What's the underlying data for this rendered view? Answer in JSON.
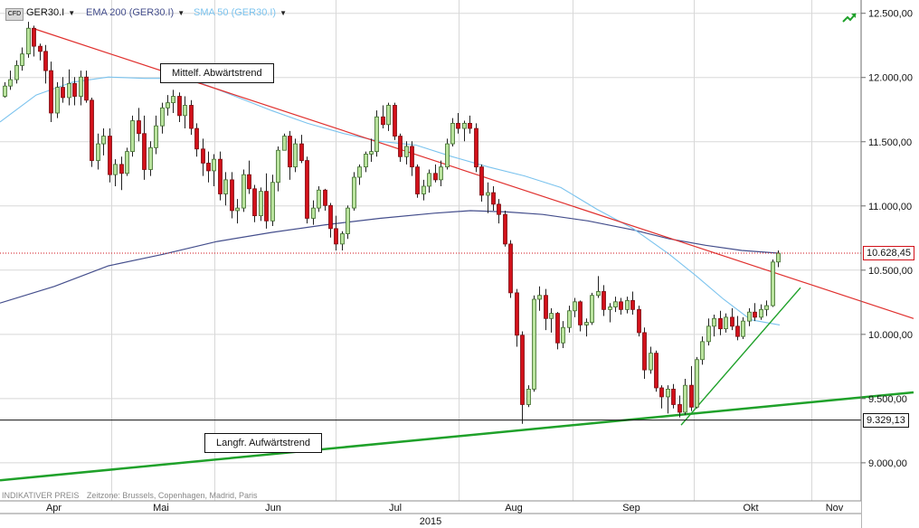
{
  "toolbar": {
    "symbol": "GER30.I",
    "ind1": "EMA 200 (GER30.I)",
    "ind2": "SMA 50 (GER30.I)",
    "ind1_color": "#444e8c",
    "ind2_color": "#7bc3ee"
  },
  "footer": {
    "price_mode": "INDIKATIVER PREIS",
    "timezone": "Zeitzone: Brussels, Copenhagen, Madrid, Paris"
  },
  "annotations": {
    "down_trend": "Mittelf. Abwärtstrend",
    "up_trend": "Langfr. Aufwärtstrend"
  },
  "tags": {
    "last_price": "10.628,45",
    "support": "9.329,13"
  },
  "chart_data": {
    "type": "candlestick",
    "ylim": [
      8700,
      12600
    ],
    "y_ticks": [
      {
        "v": 9000,
        "label": "9.000,00"
      },
      {
        "v": 9500,
        "label": "9.500,00"
      },
      {
        "v": 10000,
        "label": "10.000,00"
      },
      {
        "v": 10500,
        "label": "10.500,00"
      },
      {
        "v": 11000,
        "label": "11.000,00"
      },
      {
        "v": 11500,
        "label": "11.500,00"
      },
      {
        "v": 12000,
        "label": "12.000,00"
      },
      {
        "v": 12500,
        "label": "12.500,00"
      }
    ],
    "x_labels": [
      "Apr",
      "Mai",
      "Jun",
      "Jul",
      "Aug",
      "Sep",
      "Okt",
      "Nov"
    ],
    "x_year": "2015",
    "last_price": 10628.45,
    "support_level": 9329.13,
    "colors": {
      "up": "#b9e39d",
      "down": "#d2111a",
      "ema": "#444e8c",
      "sma": "#7bc3ee",
      "trend_down": "#e0302e",
      "trend_up": "#1fa12a"
    },
    "candles": [
      [
        11850,
        11960,
        11840,
        11930
      ],
      [
        11930,
        12050,
        11900,
        11980
      ],
      [
        11980,
        12130,
        11950,
        12090
      ],
      [
        12090,
        12230,
        12050,
        12180
      ],
      [
        12180,
        12430,
        12150,
        12380
      ],
      [
        12380,
        12400,
        12160,
        12240
      ],
      [
        12240,
        12260,
        12130,
        12200
      ],
      [
        12200,
        12250,
        11950,
        12050
      ],
      [
        12050,
        12120,
        11650,
        11720
      ],
      [
        11720,
        11960,
        11680,
        11920
      ],
      [
        11920,
        12000,
        11800,
        11840
      ],
      [
        11840,
        12060,
        11780,
        11950
      ],
      [
        11950,
        12000,
        11780,
        11850
      ],
      [
        11850,
        12050,
        11780,
        12000
      ],
      [
        12000,
        12050,
        11800,
        11820
      ],
      [
        11820,
        11840,
        11300,
        11350
      ],
      [
        11350,
        11560,
        11280,
        11480
      ],
      [
        11480,
        11600,
        11390,
        11540
      ],
      [
        11540,
        11600,
        11180,
        11240
      ],
      [
        11240,
        11360,
        11150,
        11320
      ],
      [
        11320,
        11380,
        11120,
        11250
      ],
      [
        11250,
        11450,
        11230,
        11420
      ],
      [
        11420,
        11700,
        11380,
        11660
      ],
      [
        11660,
        11760,
        11500,
        11560
      ],
      [
        11560,
        11700,
        11200,
        11280
      ],
      [
        11280,
        11500,
        11230,
        11450
      ],
      [
        11450,
        11700,
        11400,
        11620
      ],
      [
        11620,
        11800,
        11560,
        11760
      ],
      [
        11760,
        11860,
        11700,
        11800
      ],
      [
        11800,
        11900,
        11720,
        11850
      ],
      [
        11850,
        11880,
        11650,
        11700
      ],
      [
        11700,
        11850,
        11600,
        11780
      ],
      [
        11780,
        11820,
        11550,
        11600
      ],
      [
        11600,
        11640,
        11380,
        11440
      ],
      [
        11440,
        11520,
        11230,
        11330
      ],
      [
        11330,
        11420,
        11180,
        11270
      ],
      [
        11270,
        11400,
        11150,
        11360
      ],
      [
        11360,
        11420,
        11040,
        11090
      ],
      [
        11090,
        11260,
        11000,
        11200
      ],
      [
        11200,
        11260,
        10900,
        10960
      ],
      [
        10960,
        11050,
        10860,
        10980
      ],
      [
        10980,
        11280,
        10950,
        11240
      ],
      [
        11240,
        11350,
        11090,
        11130
      ],
      [
        11130,
        11160,
        10870,
        10920
      ],
      [
        10920,
        11140,
        10880,
        11110
      ],
      [
        11110,
        11250,
        10820,
        10880
      ],
      [
        10880,
        11240,
        10840,
        11180
      ],
      [
        11180,
        11460,
        11110,
        11430
      ],
      [
        11430,
        11560,
        11430,
        11540
      ],
      [
        11540,
        11580,
        11200,
        11300
      ],
      [
        11300,
        11520,
        11260,
        11480
      ],
      [
        11480,
        11550,
        11330,
        11350
      ],
      [
        11350,
        11380,
        10860,
        10900
      ],
      [
        10900,
        11040,
        10850,
        10980
      ],
      [
        10980,
        11150,
        10950,
        11120
      ],
      [
        11120,
        11130,
        10960,
        11000
      ],
      [
        11000,
        11020,
        10750,
        10820
      ],
      [
        10820,
        10920,
        10650,
        10700
      ],
      [
        10700,
        10800,
        10650,
        10780
      ],
      [
        10780,
        11000,
        10740,
        10980
      ],
      [
        10980,
        11260,
        10960,
        11220
      ],
      [
        11220,
        11320,
        11160,
        11300
      ],
      [
        11300,
        11420,
        11260,
        11400
      ],
      [
        11400,
        11520,
        11340,
        11420
      ],
      [
        11420,
        11740,
        11380,
        11690
      ],
      [
        11690,
        11780,
        11600,
        11630
      ],
      [
        11630,
        11800,
        11580,
        11780
      ],
      [
        11780,
        11800,
        11510,
        11540
      ],
      [
        11540,
        11560,
        11340,
        11380
      ],
      [
        11380,
        11500,
        11320,
        11460
      ],
      [
        11460,
        11500,
        11230,
        11300
      ],
      [
        11300,
        11320,
        11060,
        11090
      ],
      [
        11090,
        11200,
        11040,
        11150
      ],
      [
        11150,
        11280,
        11100,
        11250
      ],
      [
        11250,
        11320,
        11180,
        11200
      ],
      [
        11200,
        11350,
        11150,
        11300
      ],
      [
        11300,
        11520,
        11280,
        11480
      ],
      [
        11480,
        11680,
        11460,
        11640
      ],
      [
        11640,
        11720,
        11560,
        11600
      ],
      [
        11600,
        11660,
        11500,
        11640
      ],
      [
        11640,
        11700,
        11560,
        11600
      ],
      [
        11600,
        11640,
        11260,
        11300
      ],
      [
        11300,
        11320,
        11030,
        11080
      ],
      [
        11080,
        11180,
        10940,
        11100
      ],
      [
        11100,
        11150,
        10960,
        11010
      ],
      [
        11010,
        11050,
        10860,
        10930
      ],
      [
        10930,
        10960,
        10680,
        10700
      ],
      [
        10700,
        10730,
        10280,
        10320
      ],
      [
        10320,
        10350,
        9900,
        9990
      ],
      [
        9990,
        10020,
        9300,
        9450
      ],
      [
        9450,
        9600,
        9430,
        9570
      ],
      [
        9570,
        10300,
        9550,
        10270
      ],
      [
        10270,
        10370,
        10180,
        10300
      ],
      [
        10300,
        10350,
        10030,
        10120
      ],
      [
        10120,
        10200,
        10010,
        10160
      ],
      [
        10160,
        10170,
        9880,
        9930
      ],
      [
        9930,
        10100,
        9890,
        10050
      ],
      [
        10050,
        10220,
        10010,
        10180
      ],
      [
        10180,
        10280,
        10130,
        10250
      ],
      [
        10250,
        10260,
        10020,
        10070
      ],
      [
        10070,
        10120,
        9980,
        10090
      ],
      [
        10090,
        10320,
        10070,
        10300
      ],
      [
        10300,
        10450,
        10280,
        10330
      ],
      [
        10330,
        10380,
        10140,
        10190
      ],
      [
        10190,
        10240,
        10090,
        10210
      ],
      [
        10210,
        10290,
        10170,
        10250
      ],
      [
        10250,
        10280,
        10150,
        10190
      ],
      [
        10190,
        10290,
        10160,
        10260
      ],
      [
        10260,
        10330,
        10150,
        10190
      ],
      [
        10190,
        10220,
        9980,
        10010
      ],
      [
        10010,
        10050,
        9650,
        9720
      ],
      [
        9720,
        9900,
        9690,
        9850
      ],
      [
        9850,
        9870,
        9550,
        9580
      ],
      [
        9580,
        9600,
        9420,
        9510
      ],
      [
        9510,
        9600,
        9380,
        9570
      ],
      [
        9570,
        9610,
        9420,
        9450
      ],
      [
        9450,
        9520,
        9350,
        9390
      ],
      [
        9390,
        9650,
        9370,
        9600
      ],
      [
        9600,
        9750,
        9400,
        9430
      ],
      [
        9430,
        9820,
        9420,
        9800
      ],
      [
        9800,
        9980,
        9760,
        9940
      ],
      [
        9940,
        10120,
        9910,
        10060
      ],
      [
        10060,
        10150,
        9980,
        10120
      ],
      [
        10120,
        10180,
        9990,
        10040
      ],
      [
        10040,
        10160,
        10010,
        10130
      ],
      [
        10130,
        10200,
        10030,
        10060
      ],
      [
        10060,
        10140,
        9950,
        9980
      ],
      [
        9980,
        10130,
        9960,
        10100
      ],
      [
        10100,
        10200,
        10060,
        10170
      ],
      [
        10170,
        10240,
        10100,
        10130
      ],
      [
        10130,
        10230,
        10110,
        10190
      ],
      [
        10190,
        10260,
        10140,
        10220
      ],
      [
        10220,
        10580,
        10210,
        10560
      ],
      [
        10560,
        10650,
        10520,
        10628.45
      ]
    ],
    "ema200": [
      [
        0,
        10240
      ],
      [
        60,
        10370
      ],
      [
        120,
        10530
      ],
      [
        180,
        10620
      ],
      [
        240,
        10720
      ],
      [
        300,
        10790
      ],
      [
        360,
        10850
      ],
      [
        420,
        10900
      ],
      [
        480,
        10940
      ],
      [
        520,
        10960
      ],
      [
        560,
        10950
      ],
      [
        600,
        10930
      ],
      [
        650,
        10880
      ],
      [
        700,
        10810
      ],
      [
        740,
        10740
      ],
      [
        780,
        10690
      ],
      [
        820,
        10650
      ],
      [
        862,
        10628
      ]
    ],
    "sma50": [
      [
        0,
        11650
      ],
      [
        40,
        11860
      ],
      [
        80,
        11960
      ],
      [
        120,
        12000
      ],
      [
        160,
        11990
      ],
      [
        190,
        11990
      ],
      [
        220,
        11960
      ],
      [
        260,
        11850
      ],
      [
        300,
        11740
      ],
      [
        340,
        11640
      ],
      [
        380,
        11560
      ],
      [
        420,
        11500
      ],
      [
        460,
        11470
      ],
      [
        500,
        11380
      ],
      [
        540,
        11300
      ],
      [
        580,
        11230
      ],
      [
        620,
        11140
      ],
      [
        660,
        10970
      ],
      [
        700,
        10820
      ],
      [
        740,
        10620
      ],
      [
        770,
        10450
      ],
      [
        800,
        10270
      ],
      [
        830,
        10110
      ],
      [
        862,
        10070
      ]
    ],
    "downtrend": [
      [
        36,
        12380
      ],
      [
        1010,
        10120
      ]
    ],
    "uptrend_long": [
      [
        0,
        8860
      ],
      [
        1010,
        9545
      ]
    ],
    "uptrend_short": [
      [
        753,
        9290
      ],
      [
        885,
        10360
      ]
    ]
  }
}
